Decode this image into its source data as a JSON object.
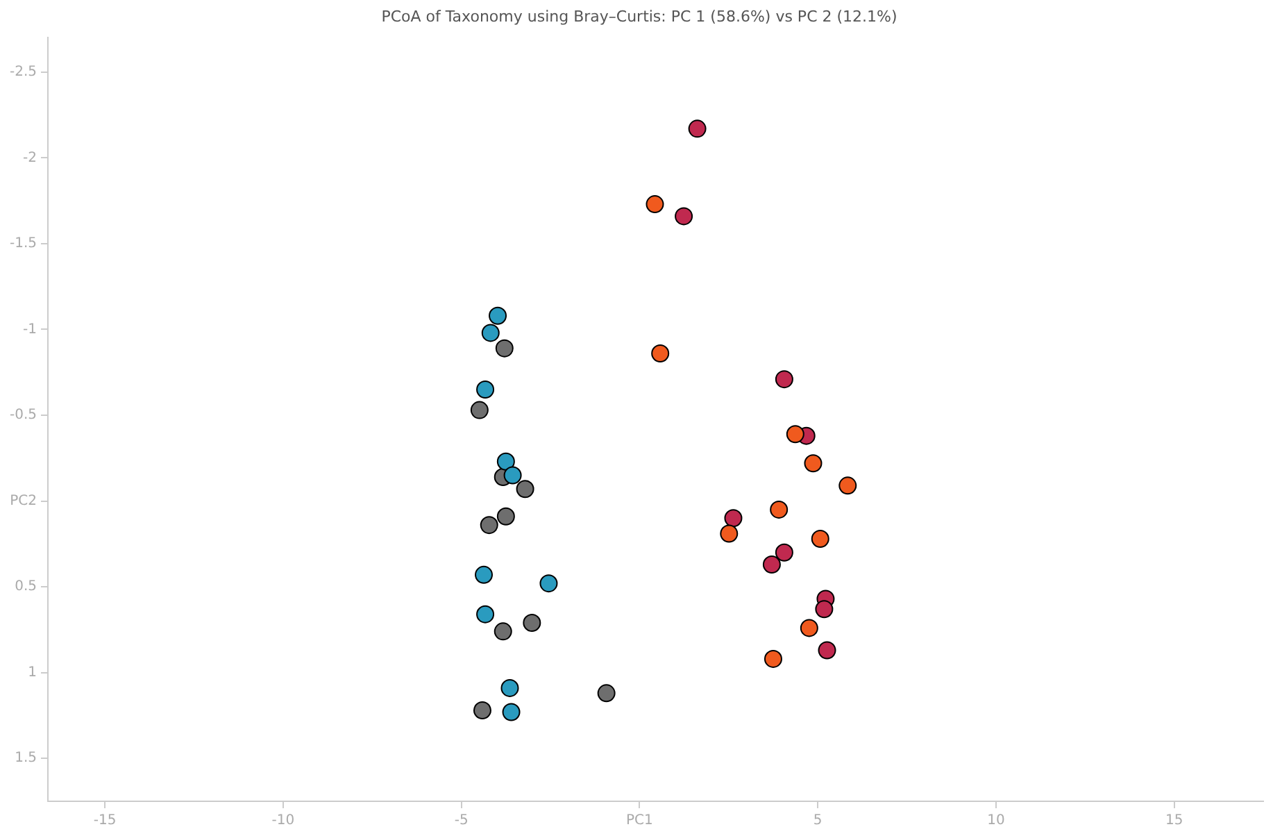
{
  "chart_data": {
    "type": "scatter",
    "title": "PCoA of Taxonomy using Bray–Curtis: PC 1 (58.6%) vs PC 2 (12.1%)",
    "xlim": [
      -16.6,
      17.5
    ],
    "xticks": [
      -15,
      -10,
      -5,
      {
        "value": 0,
        "label": "PC1"
      },
      5,
      10,
      15
    ],
    "ylim": [
      1.75,
      -2.7
    ],
    "yticks": [
      -2.5,
      -2,
      -1.5,
      -1,
      -0.5,
      {
        "value": 0,
        "label": "PC2"
      },
      0.5,
      1,
      1.5
    ],
    "grid": false,
    "legend": false,
    "marker": "circle",
    "series": [
      {
        "color": "#2a9bbf",
        "x": [
          -3.98,
          -4.18,
          -4.33,
          -3.75,
          -3.56,
          -4.37,
          -2.55,
          -4.33,
          -3.64,
          -3.6
        ],
        "values": [
          -1.08,
          -0.98,
          -0.65,
          -0.23,
          -0.15,
          0.43,
          0.48,
          0.66,
          1.09,
          1.23
        ]
      },
      {
        "color": "#6e6e6e",
        "x": [
          -3.79,
          -4.49,
          -3.83,
          -3.21,
          -4.22,
          -3.75,
          -3.83,
          -3.02,
          -4.41,
          -0.93
        ],
        "values": [
          -0.89,
          -0.53,
          -0.14,
          -0.07,
          0.14,
          0.09,
          0.76,
          0.71,
          1.22,
          1.12
        ]
      },
      {
        "color": "#f05a1e",
        "x": [
          0.43,
          0.58,
          4.37,
          4.87,
          5.84,
          3.91,
          2.51,
          5.07,
          4.76,
          3.75
        ],
        "values": [
          -1.73,
          -0.86,
          -0.39,
          -0.22,
          -0.09,
          0.05,
          0.19,
          0.22,
          0.74,
          0.92
        ]
      },
      {
        "color": "#c0294f",
        "x": [
          1.62,
          1.24,
          4.06,
          4.68,
          2.63,
          4.06,
          3.71,
          5.22,
          5.18,
          5.26
        ],
        "values": [
          -2.17,
          -1.66,
          -0.71,
          -0.38,
          0.1,
          0.3,
          0.37,
          0.57,
          0.63,
          0.87
        ]
      }
    ]
  }
}
